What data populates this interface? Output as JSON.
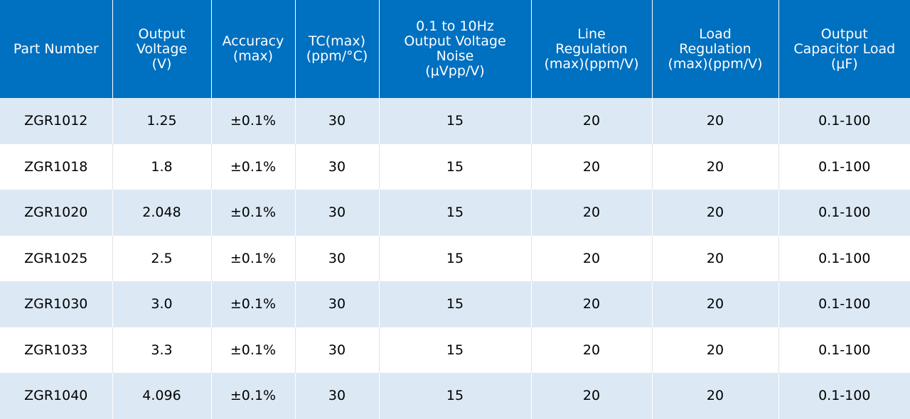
{
  "colors": {
    "header_bg": "#0070c0",
    "header_text": "#ffffff",
    "row_odd_bg": "#dce9f5",
    "row_even_bg": "#ffffff"
  },
  "table": {
    "headers": [
      [
        "Part Number"
      ],
      [
        "Output",
        "Voltage",
        "(V)"
      ],
      [
        "Accuracy",
        "(max)"
      ],
      [
        "TC(max)",
        "(ppm/°C)"
      ],
      [
        "0.1 to 10Hz",
        "Output Voltage",
        "Noise",
        "(μVpp/V)"
      ],
      [
        "Line",
        "Regulation",
        "(max)(ppm/V)"
      ],
      [
        "Load",
        "Regulation",
        "(max)(ppm/V)"
      ],
      [
        "Output",
        "Capacitor Load",
        "(μF)"
      ]
    ],
    "rows": [
      [
        "ZGR1012",
        "1.25",
        "±0.1%",
        "30",
        "15",
        "20",
        "20",
        "0.1-100"
      ],
      [
        "ZGR1018",
        "1.8",
        "±0.1%",
        "30",
        "15",
        "20",
        "20",
        "0.1-100"
      ],
      [
        "ZGR1020",
        "2.048",
        "±0.1%",
        "30",
        "15",
        "20",
        "20",
        "0.1-100"
      ],
      [
        "ZGR1025",
        "2.5",
        "±0.1%",
        "30",
        "15",
        "20",
        "20",
        "0.1-100"
      ],
      [
        "ZGR1030",
        "3.0",
        "±0.1%",
        "30",
        "15",
        "20",
        "20",
        "0.1-100"
      ],
      [
        "ZGR1033",
        "3.3",
        "±0.1%",
        "30",
        "15",
        "20",
        "20",
        "0.1-100"
      ],
      [
        "ZGR1040",
        "4.096",
        "±0.1%",
        "30",
        "15",
        "20",
        "20",
        "0.1-100"
      ]
    ]
  }
}
